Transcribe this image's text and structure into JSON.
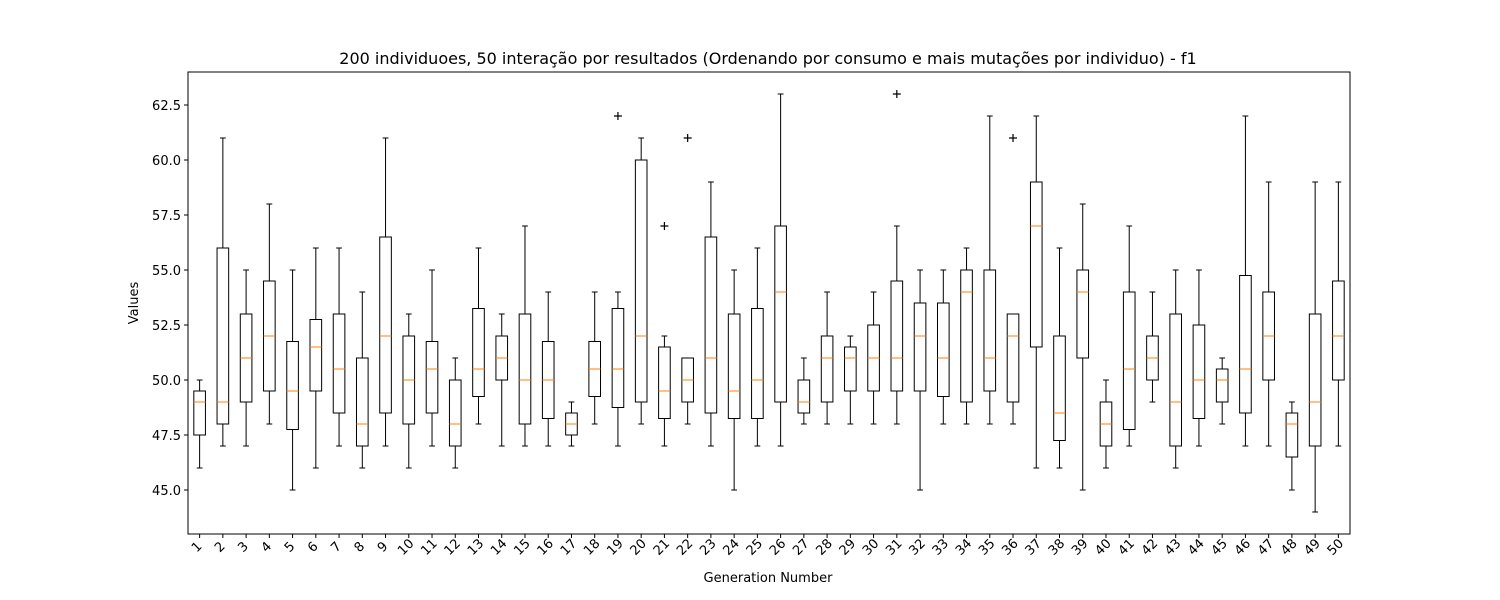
{
  "chart_data": {
    "type": "box",
    "title": "200 individuoes, 50 interação por resultados (Ordenando por consumo e mais mutações por individuo) - f1",
    "xlabel": "Generation Number",
    "ylabel": "Values",
    "ylim": [
      43.0,
      64.0
    ],
    "yticks": [
      "45.0",
      "47.5",
      "50.0",
      "52.5",
      "55.0",
      "57.5",
      "60.0",
      "62.5"
    ],
    "ytick_values": [
      45.0,
      47.5,
      50.0,
      52.5,
      55.0,
      57.5,
      60.0,
      62.5
    ],
    "categories": [
      "1",
      "2",
      "3",
      "4",
      "5",
      "6",
      "7",
      "8",
      "9",
      "10",
      "11",
      "12",
      "13",
      "14",
      "15",
      "16",
      "17",
      "18",
      "19",
      "20",
      "21",
      "22",
      "23",
      "24",
      "25",
      "26",
      "27",
      "28",
      "29",
      "30",
      "31",
      "32",
      "33",
      "34",
      "35",
      "36",
      "37",
      "38",
      "39",
      "40",
      "41",
      "42",
      "43",
      "44",
      "45",
      "46",
      "47",
      "48",
      "49",
      "50"
    ],
    "grid": false,
    "colors": {
      "box": "#000000",
      "median": "#ff7f0e"
    },
    "boxes": [
      {
        "whislo": 46,
        "q1": 47.5,
        "med": 49,
        "q3": 49.5,
        "whishi": 50,
        "fliers": []
      },
      {
        "whislo": 47,
        "q1": 48,
        "med": 49,
        "q3": 56,
        "whishi": 61,
        "fliers": []
      },
      {
        "whislo": 47,
        "q1": 49,
        "med": 51,
        "q3": 53,
        "whishi": 55,
        "fliers": []
      },
      {
        "whislo": 48,
        "q1": 49.5,
        "med": 52,
        "q3": 54.5,
        "whishi": 58,
        "fliers": []
      },
      {
        "whislo": 45,
        "q1": 47.75,
        "med": 49.5,
        "q3": 51.75,
        "whishi": 55,
        "fliers": []
      },
      {
        "whislo": 46,
        "q1": 49.5,
        "med": 51.5,
        "q3": 52.75,
        "whishi": 56,
        "fliers": []
      },
      {
        "whislo": 47,
        "q1": 48.5,
        "med": 50.5,
        "q3": 53,
        "whishi": 56,
        "fliers": []
      },
      {
        "whislo": 46,
        "q1": 47,
        "med": 48,
        "q3": 51,
        "whishi": 54,
        "fliers": []
      },
      {
        "whislo": 47,
        "q1": 48.5,
        "med": 52,
        "q3": 56.5,
        "whishi": 61,
        "fliers": []
      },
      {
        "whislo": 46,
        "q1": 48,
        "med": 50,
        "q3": 52,
        "whishi": 53,
        "fliers": []
      },
      {
        "whislo": 47,
        "q1": 48.5,
        "med": 50.5,
        "q3": 51.75,
        "whishi": 55,
        "fliers": []
      },
      {
        "whislo": 46,
        "q1": 47,
        "med": 48,
        "q3": 50,
        "whishi": 51,
        "fliers": []
      },
      {
        "whislo": 48,
        "q1": 49.25,
        "med": 50.5,
        "q3": 53.25,
        "whishi": 56,
        "fliers": []
      },
      {
        "whislo": 47,
        "q1": 50,
        "med": 51,
        "q3": 52,
        "whishi": 53,
        "fliers": []
      },
      {
        "whislo": 47,
        "q1": 48,
        "med": 50,
        "q3": 53,
        "whishi": 57,
        "fliers": []
      },
      {
        "whislo": 47,
        "q1": 48.25,
        "med": 50,
        "q3": 51.75,
        "whishi": 54,
        "fliers": []
      },
      {
        "whislo": 47,
        "q1": 47.5,
        "med": 48,
        "q3": 48.5,
        "whishi": 49,
        "fliers": []
      },
      {
        "whislo": 48,
        "q1": 49.25,
        "med": 50.5,
        "q3": 51.75,
        "whishi": 54,
        "fliers": []
      },
      {
        "whislo": 47,
        "q1": 48.75,
        "med": 50.5,
        "q3": 53.25,
        "whishi": 54,
        "fliers": [
          62
        ]
      },
      {
        "whislo": 48,
        "q1": 49,
        "med": 52,
        "q3": 60,
        "whishi": 61,
        "fliers": []
      },
      {
        "whislo": 47,
        "q1": 48.25,
        "med": 49.5,
        "q3": 51.5,
        "whishi": 52,
        "fliers": [
          57
        ]
      },
      {
        "whislo": 48,
        "q1": 49,
        "med": 50,
        "q3": 51,
        "whishi": 51,
        "fliers": [
          61
        ]
      },
      {
        "whislo": 47,
        "q1": 48.5,
        "med": 51,
        "q3": 56.5,
        "whishi": 59,
        "fliers": []
      },
      {
        "whislo": 45,
        "q1": 48.25,
        "med": 49.5,
        "q3": 53,
        "whishi": 55,
        "fliers": []
      },
      {
        "whislo": 47,
        "q1": 48.25,
        "med": 50,
        "q3": 53.25,
        "whishi": 56,
        "fliers": []
      },
      {
        "whislo": 47,
        "q1": 49,
        "med": 54,
        "q3": 57,
        "whishi": 63,
        "fliers": []
      },
      {
        "whislo": 48,
        "q1": 48.5,
        "med": 49,
        "q3": 50,
        "whishi": 51,
        "fliers": []
      },
      {
        "whislo": 48,
        "q1": 49,
        "med": 51,
        "q3": 52,
        "whishi": 54,
        "fliers": []
      },
      {
        "whislo": 48,
        "q1": 49.5,
        "med": 51,
        "q3": 51.5,
        "whishi": 52,
        "fliers": []
      },
      {
        "whislo": 48,
        "q1": 49.5,
        "med": 51,
        "q3": 52.5,
        "whishi": 54,
        "fliers": []
      },
      {
        "whislo": 48,
        "q1": 49.5,
        "med": 51,
        "q3": 54.5,
        "whishi": 57,
        "fliers": [
          63
        ]
      },
      {
        "whislo": 45,
        "q1": 49.5,
        "med": 52,
        "q3": 53.5,
        "whishi": 55,
        "fliers": []
      },
      {
        "whislo": 48,
        "q1": 49.25,
        "med": 51,
        "q3": 53.5,
        "whishi": 55,
        "fliers": []
      },
      {
        "whislo": 48,
        "q1": 49,
        "med": 54,
        "q3": 55,
        "whishi": 56,
        "fliers": []
      },
      {
        "whislo": 48,
        "q1": 49.5,
        "med": 51,
        "q3": 55,
        "whishi": 62,
        "fliers": []
      },
      {
        "whislo": 48,
        "q1": 49,
        "med": 52,
        "q3": 53,
        "whishi": 53,
        "fliers": [
          61
        ]
      },
      {
        "whislo": 46,
        "q1": 51.5,
        "med": 57,
        "q3": 59,
        "whishi": 62,
        "fliers": []
      },
      {
        "whislo": 46,
        "q1": 47.25,
        "med": 48.5,
        "q3": 52,
        "whishi": 56,
        "fliers": []
      },
      {
        "whislo": 45,
        "q1": 51,
        "med": 54,
        "q3": 55,
        "whishi": 58,
        "fliers": []
      },
      {
        "whislo": 46,
        "q1": 47,
        "med": 48,
        "q3": 49,
        "whishi": 50,
        "fliers": []
      },
      {
        "whislo": 47,
        "q1": 47.75,
        "med": 50.5,
        "q3": 54,
        "whishi": 57,
        "fliers": []
      },
      {
        "whislo": 49,
        "q1": 50,
        "med": 51,
        "q3": 52,
        "whishi": 54,
        "fliers": []
      },
      {
        "whislo": 46,
        "q1": 47,
        "med": 49,
        "q3": 53,
        "whishi": 55,
        "fliers": []
      },
      {
        "whislo": 47,
        "q1": 48.25,
        "med": 50,
        "q3": 52.5,
        "whishi": 55,
        "fliers": []
      },
      {
        "whislo": 48,
        "q1": 49,
        "med": 50,
        "q3": 50.5,
        "whishi": 51,
        "fliers": []
      },
      {
        "whislo": 47,
        "q1": 48.5,
        "med": 50.5,
        "q3": 54.75,
        "whishi": 62,
        "fliers": []
      },
      {
        "whislo": 47,
        "q1": 50,
        "med": 52,
        "q3": 54,
        "whishi": 59,
        "fliers": []
      },
      {
        "whislo": 45,
        "q1": 46.5,
        "med": 48,
        "q3": 48.5,
        "whishi": 49,
        "fliers": []
      },
      {
        "whislo": 44,
        "q1": 47,
        "med": 49,
        "q3": 53,
        "whishi": 59,
        "fliers": []
      },
      {
        "whislo": 47,
        "q1": 50,
        "med": 52,
        "q3": 54.5,
        "whishi": 59,
        "fliers": []
      }
    ]
  }
}
